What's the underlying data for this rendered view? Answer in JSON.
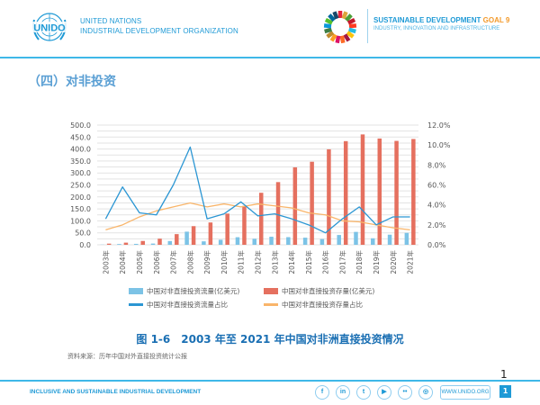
{
  "header": {
    "org_line1": "UNITED NATIONS",
    "org_line2": "INDUSTRIAL DEVELOPMENT ORGANIZATION",
    "logo_label": "UNIDO",
    "sdg_title": "SUSTAINABLE DEVELOPMENT",
    "sdg_goal": "GOAL 9",
    "sdg_sub": "INDUSTRY, INNOVATION AND INFRASTRUCTURE"
  },
  "section_title": "（四）对非投资",
  "colors": {
    "flow_bar": "#7cc3e6",
    "stock_bar": "#e5705f",
    "flow_share_line": "#2b96d3",
    "stock_share_line": "#f9b56a",
    "brand_blue": "#1f9ad6",
    "caption_blue": "#1a6fb3"
  },
  "chart_data": {
    "type": "bar",
    "title": "图 1-6　2003 年至 2021 年中国对非洲直接投资情况",
    "xlabel": "",
    "ylabel": "",
    "categories": [
      "2003年",
      "2004年",
      "2005年",
      "2006年",
      "2007年",
      "2008年",
      "2009年",
      "2010年",
      "2011年",
      "2012年",
      "2013年",
      "2014年",
      "2015年",
      "2016年",
      "2017年",
      "2018年",
      "2019年",
      "2020年",
      "2021年"
    ],
    "left_axis": {
      "ylim": [
        0,
        500
      ],
      "ticks": [
        "0.0",
        "50.0",
        "100.0",
        "150.0",
        "200.0",
        "250.0",
        "300.0",
        "350.0",
        "400.0",
        "450.0",
        "500.0"
      ]
    },
    "right_axis": {
      "ylim": [
        0,
        12
      ],
      "ticks": [
        "0.0%",
        "2.0%",
        "4.0%",
        "60.%",
        "8.0%",
        "10.0%",
        "12.0%"
      ]
    },
    "grid": true,
    "legend_position": "bottom",
    "series": [
      {
        "name": "中国对非直接投资流量（亿美元）",
        "type": "bar",
        "axis": "left",
        "values": [
          0.7,
          3.2,
          3.9,
          5.2,
          15.7,
          54.9,
          14.4,
          21.1,
          31.7,
          25.2,
          33.7,
          32.0,
          29.8,
          24.0,
          41.0,
          53.9,
          27.1,
          42.3,
          49.9
        ]
      },
      {
        "name": "中国对非直接投资存量（亿美元）",
        "type": "bar",
        "axis": "left",
        "values": [
          4.9,
          9.0,
          16.0,
          25.6,
          44.6,
          78.0,
          93.3,
          130.4,
          162.4,
          217.3,
          261.9,
          323.5,
          346.9,
          398.9,
          433.0,
          461.0,
          444.0,
          434.0,
          441.9
        ]
      },
      {
        "name": "中国对非直接投资流量占比",
        "type": "line",
        "axis": "right",
        "values": [
          2.6,
          5.8,
          3.2,
          3.0,
          6.0,
          9.8,
          2.6,
          3.1,
          4.3,
          2.9,
          3.1,
          2.6,
          2.0,
          1.2,
          2.6,
          3.8,
          2.0,
          2.8,
          2.8
        ]
      },
      {
        "name": "中国对非直接投资存量占比",
        "type": "line",
        "axis": "right",
        "values": [
          1.5,
          2.0,
          2.8,
          3.4,
          3.8,
          4.2,
          3.8,
          4.1,
          3.8,
          4.1,
          3.9,
          3.7,
          3.2,
          3.0,
          2.4,
          2.3,
          2.0,
          1.7,
          1.5
        ]
      }
    ]
  },
  "legend": [
    {
      "label": "中国对非直接投资流量(亿美元)",
      "kind": "bar",
      "color_key": "flow_bar"
    },
    {
      "label": "中国对非直接投资存量(亿美元)",
      "kind": "bar",
      "color_key": "stock_bar"
    },
    {
      "label": "中国对非直接投资流量占比",
      "kind": "line",
      "color_key": "flow_share_line"
    },
    {
      "label": "中国对非直接投资存量占比",
      "kind": "line",
      "color_key": "stock_share_line"
    }
  ],
  "figure_caption": "图 1-6　2003 年至 2021 年中国对非洲直接投资情况",
  "source": "资料来源：历年中国对外直接投资统计公报",
  "footer": {
    "tagline": "INCLUSIVE AND SUSTAINABLE INDUSTRIAL DEVELOPMENT",
    "social": [
      {
        "icon": "facebook-icon",
        "glyph": "f"
      },
      {
        "icon": "linkedin-icon",
        "glyph": "in"
      },
      {
        "icon": "twitter-icon",
        "glyph": "t"
      },
      {
        "icon": "youtube-icon",
        "glyph": "▶"
      },
      {
        "icon": "flickr-icon",
        "glyph": "••"
      },
      {
        "icon": "instagram-icon",
        "glyph": "◎"
      }
    ],
    "website": "WWW.UNIDO.ORG",
    "page_number": "1",
    "page_number_overlay": "1"
  }
}
